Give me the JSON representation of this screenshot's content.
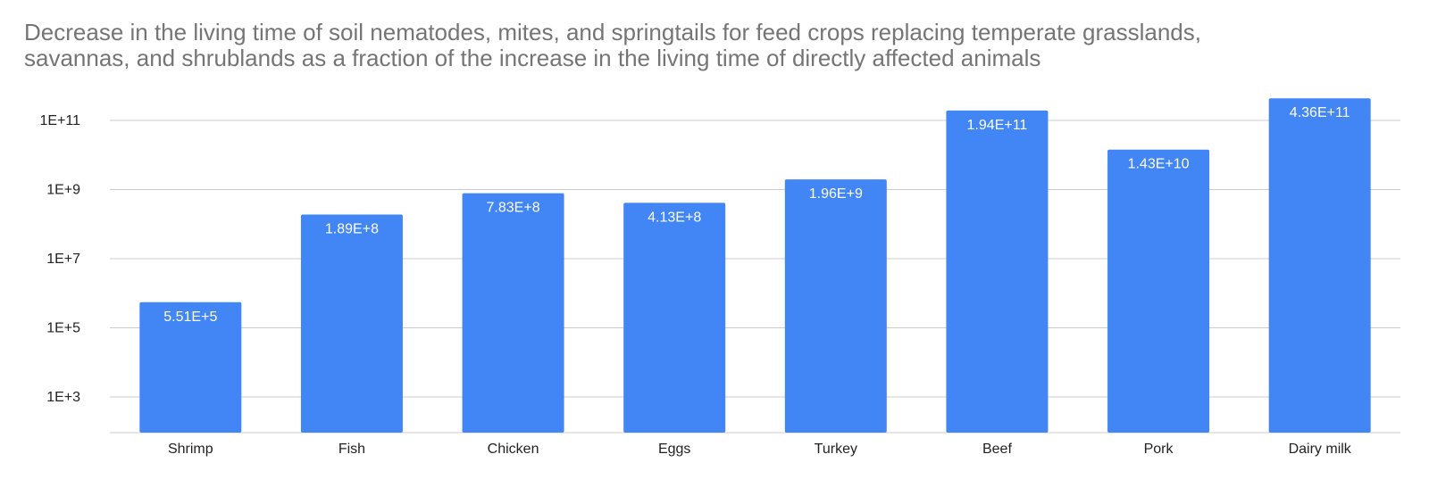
{
  "chart_data": {
    "type": "bar",
    "title_lines": [
      "Decrease in the living time of soil nematodes, mites, and springtails for feed crops replacing temperate grasslands,",
      "savannas, and shrublands as a fraction of the increase in the living time of directly affected animals"
    ],
    "categories": [
      "Shrimp",
      "Fish",
      "Chicken",
      "Eggs",
      "Turkey",
      "Beef",
      "Pork",
      "Dairy milk"
    ],
    "values": [
      551000,
      189000000,
      783000000,
      413000000,
      1960000000,
      194000000000,
      14300000000,
      436000000000
    ],
    "data_labels": [
      "5.51E+5",
      "1.89E+8",
      "7.83E+8",
      "4.13E+8",
      "1.96E+9",
      "1.94E+11",
      "1.43E+10",
      "4.36E+11"
    ],
    "y_scale": "log",
    "y_ticks": [
      1000,
      100000,
      10000000,
      1000000000,
      100000000000
    ],
    "y_tick_labels": [
      "1E+3",
      "1E+5",
      "1E+7",
      "1E+9",
      "1E+11"
    ],
    "bar_color": "#4285f4",
    "grid": true,
    "legend": "none"
  }
}
